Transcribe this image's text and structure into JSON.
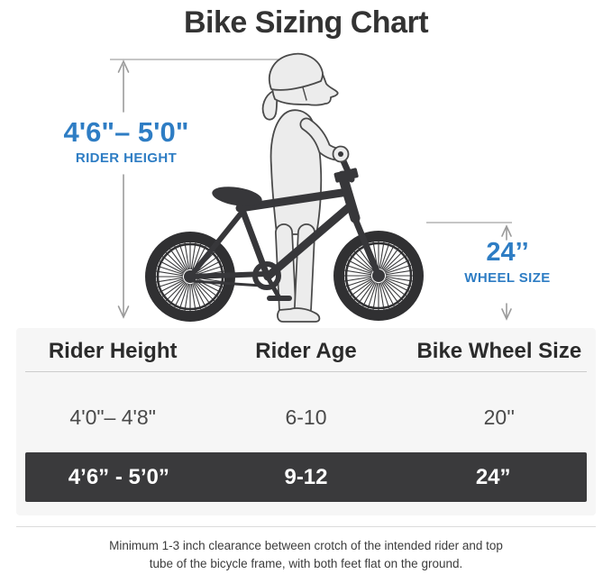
{
  "title": "Bike Sizing Chart",
  "colors": {
    "accent_blue": "#2e7dc4",
    "ink": "#333333",
    "panel_bg": "#f6f6f6",
    "highlight_row_bg": "#3a3a3c",
    "highlight_row_text": "#ffffff",
    "measure_line_gray": "#9b9b9b"
  },
  "illustration": {
    "rider_height_label": {
      "value": "4'6\"– 5'0\"",
      "caption": "RIDER HEIGHT"
    },
    "wheel_size_label": {
      "value": "24’’",
      "caption": "WHEEL SIZE"
    }
  },
  "table": {
    "headers": [
      "Rider Height",
      "Rider Age",
      "Bike Wheel Size"
    ],
    "rows": [
      {
        "cells": [
          "4'0\"– 4'8\"",
          "6-10",
          "20''"
        ],
        "highlighted": false
      },
      {
        "cells": [
          "4’6” - 5’0”",
          "9-12",
          "24”"
        ],
        "highlighted": true
      }
    ]
  },
  "footer": {
    "line1": "Minimum 1-3 inch clearance between crotch of the intended rider and top",
    "line2": "tube of the bicycle frame, with both feet flat on the ground."
  }
}
